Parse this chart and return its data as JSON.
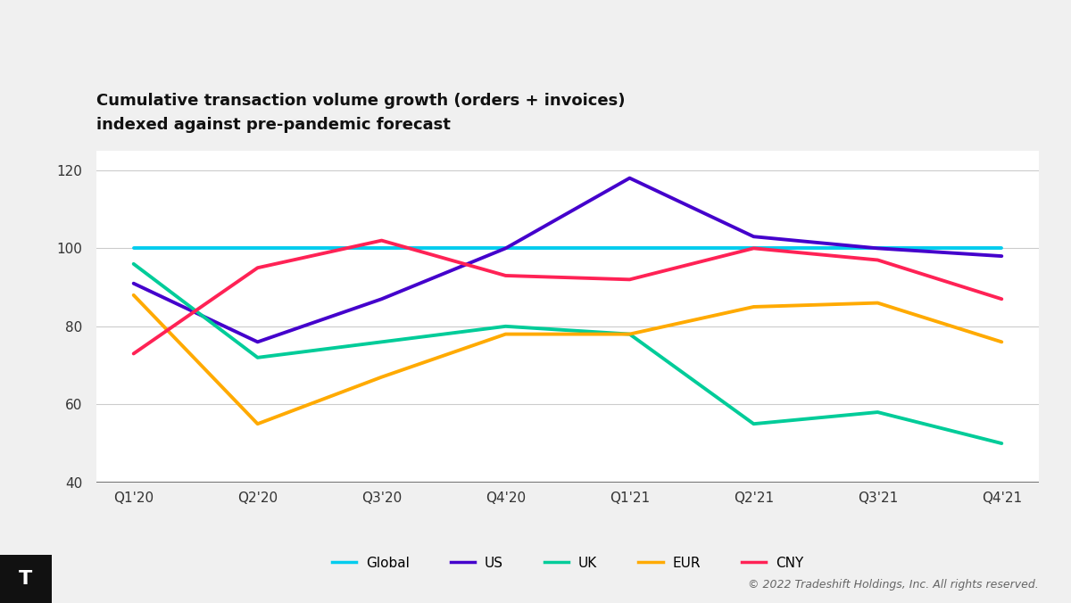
{
  "title_line1": "Cumulative transaction volume growth (orders + invoices)",
  "title_line2": "indexed against pre-pandemic forecast",
  "quarters": [
    "Q1'20",
    "Q2'20",
    "Q3'20",
    "Q4'20",
    "Q1'21",
    "Q2'21",
    "Q3'21",
    "Q4'21"
  ],
  "series": {
    "Global": {
      "values": [
        100,
        100,
        100,
        100,
        100,
        100,
        100,
        100
      ],
      "color": "#00CCEE",
      "linewidth": 2.8
    },
    "US": {
      "values": [
        91,
        76,
        87,
        100,
        118,
        103,
        100,
        98
      ],
      "color": "#4400CC",
      "linewidth": 2.8
    },
    "UK": {
      "values": [
        96,
        72,
        76,
        80,
        78,
        55,
        58,
        50
      ],
      "color": "#00CC99",
      "linewidth": 2.8
    },
    "EUR": {
      "values": [
        88,
        55,
        67,
        78,
        78,
        85,
        86,
        76
      ],
      "color": "#FFAA00",
      "linewidth": 2.8
    },
    "CNY": {
      "values": [
        73,
        95,
        102,
        93,
        92,
        100,
        97,
        87
      ],
      "color": "#FF2255",
      "linewidth": 2.8
    }
  },
  "ylim": [
    40,
    125
  ],
  "yticks": [
    40,
    60,
    80,
    100,
    120
  ],
  "figure_bg": "#F0F0F0",
  "plot_bg": "#FFFFFF",
  "grid_color": "#CCCCCC",
  "bottom_line_color": "#555555",
  "title_fontsize": 13,
  "tick_fontsize": 11,
  "legend_fontsize": 11,
  "copyright_text": "© 2022 Tradeshift Holdings, Inc. All rights reserved.",
  "logo_text": "T"
}
